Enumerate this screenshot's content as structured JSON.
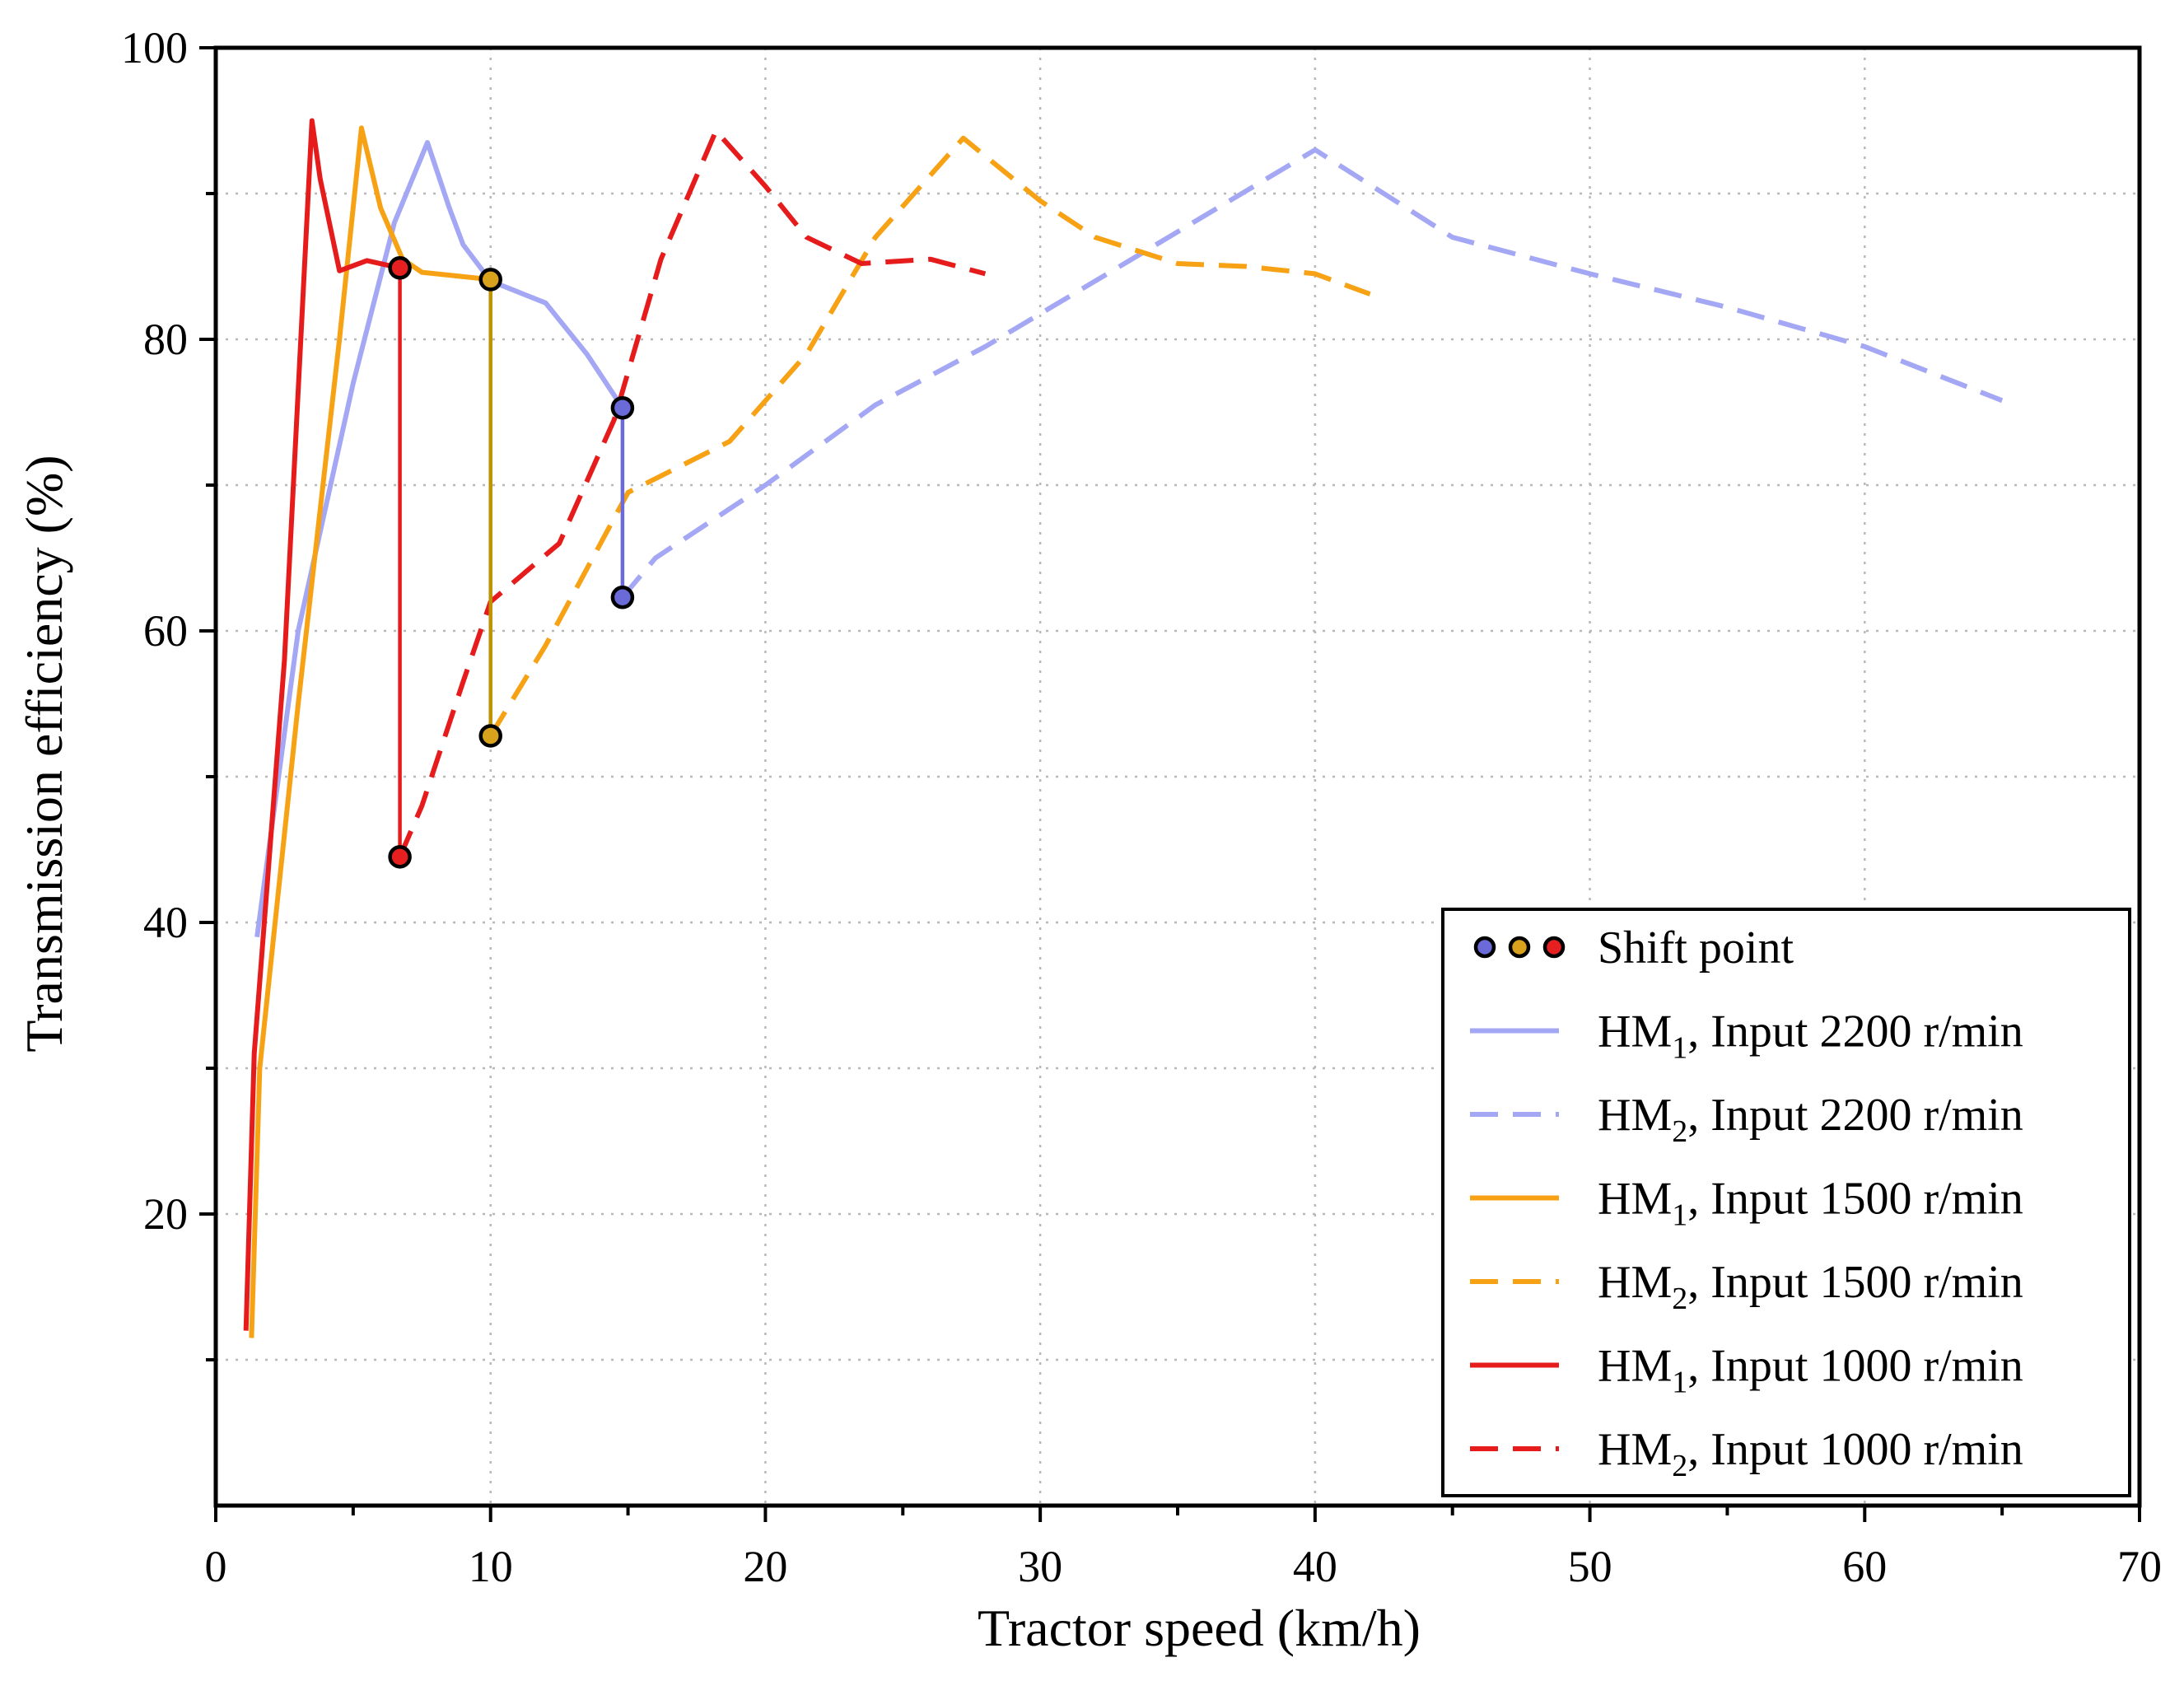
{
  "chart_data": {
    "type": "line",
    "title": "",
    "xlabel": "Tractor speed (km/h)",
    "ylabel": "Transmission efficiency (%)",
    "xlim": [
      0,
      70
    ],
    "ylim": [
      0,
      100
    ],
    "xticks": [
      "0",
      "10",
      "20",
      "30",
      "40",
      "50",
      "60",
      "70"
    ],
    "yticks": [
      "20",
      "40",
      "60",
      "80",
      "100"
    ],
    "grid": true,
    "legend_position": "bottom-right",
    "colors": {
      "blue": "#a4a7f4",
      "orange": "#f7a215",
      "red": "#e61b1b",
      "shift_blue": "#6a6ad8",
      "shift_orange": "#d9a21c",
      "shift_red": "#e62020",
      "shift_line_blue": "#6a6ad8",
      "shift_line_orange": "#c09200",
      "shift_line_red": "#e61b1b"
    },
    "series": [
      {
        "name": "HM1, Input 2200 r/min",
        "legend_main": "HM",
        "legend_sub": "1",
        "legend_rest": ", Input 2200 r/min",
        "color": "#a4a7f4",
        "dash": false,
        "x": [
          1.5,
          3,
          5,
          6.5,
          7.7,
          8.5,
          9,
          10,
          12,
          13.5,
          14.8
        ],
        "y": [
          39,
          60,
          77,
          88,
          93.5,
          89,
          86.5,
          84,
          82.5,
          79,
          75.3
        ]
      },
      {
        "name": "HM2, Input 2200 r/min",
        "legend_main": "HM",
        "legend_sub": "2",
        "legend_rest": ", Input 2200 r/min",
        "color": "#a4a7f4",
        "dash": true,
        "x": [
          14.8,
          16,
          20,
          24,
          28,
          32,
          36,
          40,
          45,
          50,
          55,
          60,
          65
        ],
        "y": [
          62.3,
          65,
          70,
          75.5,
          79.5,
          84,
          88.5,
          93,
          87,
          84.5,
          82.2,
          79.5,
          75.8
        ]
      },
      {
        "name": "HM1, Input 1500 r/min",
        "legend_main": "HM",
        "legend_sub": "1",
        "legend_rest": ", Input 1500 r/min",
        "color": "#f7a215",
        "dash": false,
        "x": [
          1.3,
          1.6,
          3,
          4.5,
          5.3,
          6,
          6.8,
          7.5,
          10
        ],
        "y": [
          11.5,
          30,
          55,
          80,
          94.5,
          89,
          85.5,
          84.6,
          84.1
        ]
      },
      {
        "name": "HM2, Input 1500 r/min",
        "legend_main": "HM",
        "legend_sub": "2",
        "legend_rest": ", Input 1500 r/min",
        "color": "#f7a215",
        "dash": true,
        "x": [
          10,
          12,
          15,
          18.7,
          21.5,
          24,
          27.2,
          30,
          32,
          35,
          37.5,
          40,
          42
        ],
        "y": [
          52.8,
          59,
          69.5,
          73,
          79,
          87,
          93.8,
          89.5,
          87,
          85.2,
          85,
          84.5,
          83.1
        ]
      },
      {
        "name": "HM1, Input 1000 r/min",
        "legend_main": "HM",
        "legend_sub": "1",
        "legend_rest": ", Input 1000 r/min",
        "color": "#e61b1b",
        "dash": false,
        "x": [
          1.1,
          1.4,
          2.5,
          3.5,
          3.8,
          4.5,
          5.5,
          6.7
        ],
        "y": [
          12,
          31,
          58,
          95,
          91,
          84.7,
          85.4,
          84.9
        ]
      },
      {
        "name": "HM2, Input 1000 r/min",
        "legend_main": "HM",
        "legend_sub": "2",
        "legend_rest": ", Input 1000 r/min",
        "color": "#e61b1b",
        "dash": true,
        "x": [
          6.7,
          7.5,
          9,
          10,
          12.5,
          14.5,
          16.2,
          18.2,
          20,
          21.5,
          23.5,
          26,
          28
        ],
        "y": [
          44.5,
          48,
          56.5,
          62,
          66,
          74.5,
          85.5,
          94.3,
          90.5,
          87,
          85.2,
          85.5,
          84.5
        ]
      }
    ],
    "shift_points": {
      "legend_label": "Shift point",
      "points": [
        {
          "group": "2200 r/min",
          "x": 14.8,
          "y_high": 75.3,
          "y_low": 62.3,
          "fill": "#6a6ad8",
          "line": "#6a6ad8"
        },
        {
          "group": "1500 r/min",
          "x": 10,
          "y_high": 84.1,
          "y_low": 52.8,
          "fill": "#d9a21c",
          "line": "#c09200"
        },
        {
          "group": "1000 r/min",
          "x": 6.7,
          "y_high": 84.9,
          "y_low": 44.5,
          "fill": "#e62020",
          "line": "#e61b1b"
        }
      ]
    }
  }
}
